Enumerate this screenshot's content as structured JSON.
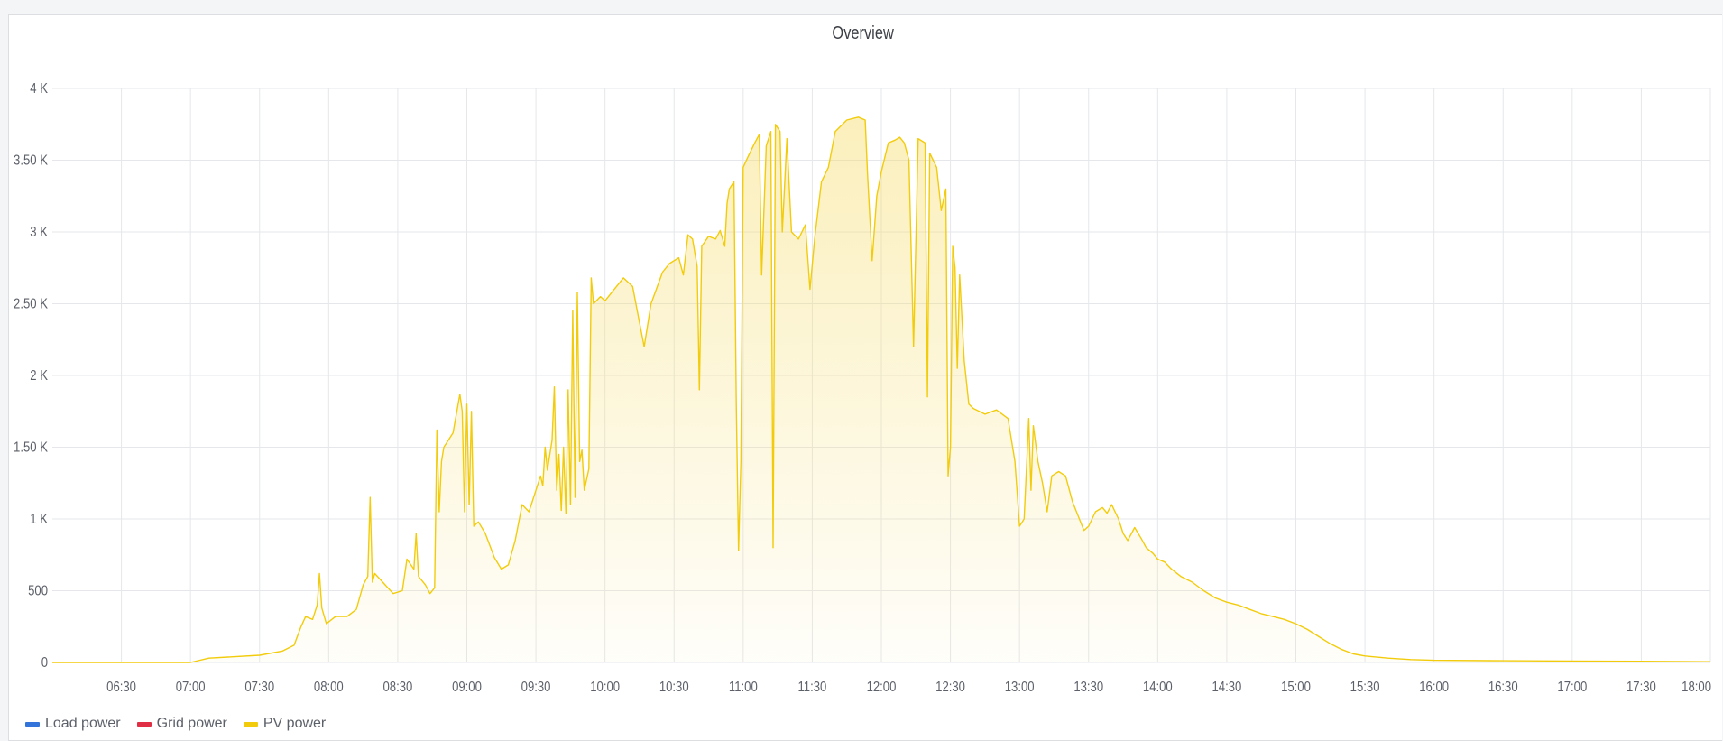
{
  "panel": {
    "title": "Overview"
  },
  "colors": {
    "pv": "#f2cc0c",
    "pv_fill_top": "#f6dc6a",
    "load": "#3274d9",
    "grid": "#e02f44",
    "grid_lines": "#e6e7ea"
  },
  "legend": [
    {
      "label": "Load power",
      "color": "#3274d9"
    },
    {
      "label": "Grid power",
      "color": "#e02f44"
    },
    {
      "label": "PV power",
      "color": "#f2cc0c"
    }
  ],
  "chart_data": {
    "type": "area",
    "title": "Overview",
    "xlabel": "",
    "ylabel": "",
    "x_range": [
      "06:00",
      "18:00"
    ],
    "y_range": [
      0,
      4000
    ],
    "x_ticks": [
      "06:30",
      "07:00",
      "07:30",
      "08:00",
      "08:30",
      "09:00",
      "09:30",
      "10:00",
      "10:30",
      "11:00",
      "11:30",
      "12:00",
      "12:30",
      "13:00",
      "13:30",
      "14:00",
      "14:30",
      "15:00",
      "15:30",
      "16:00",
      "16:30",
      "17:00",
      "17:30",
      "18:00"
    ],
    "y_ticks": [
      {
        "value": 0,
        "label": "0"
      },
      {
        "value": 500,
        "label": "500"
      },
      {
        "value": 1000,
        "label": "1 K"
      },
      {
        "value": 1500,
        "label": "1.50 K"
      },
      {
        "value": 2000,
        "label": "2 K"
      },
      {
        "value": 2500,
        "label": "2.50 K"
      },
      {
        "value": 3000,
        "label": "3 K"
      },
      {
        "value": 3500,
        "label": "3.50 K"
      },
      {
        "value": 4000,
        "label": "4 K"
      }
    ],
    "grid": true,
    "legend_position": "bottom-left",
    "series": [
      {
        "name": "Load power",
        "values": []
      },
      {
        "name": "Grid power",
        "values": []
      },
      {
        "name": "PV power",
        "points": [
          [
            "06:00",
            0
          ],
          [
            "06:30",
            0
          ],
          [
            "06:45",
            0
          ],
          [
            "07:00",
            0
          ],
          [
            "07:08",
            30
          ],
          [
            "07:30",
            50
          ],
          [
            "07:40",
            80
          ],
          [
            "07:45",
            120
          ],
          [
            "07:48",
            250
          ],
          [
            "07:50",
            320
          ],
          [
            "07:53",
            300
          ],
          [
            "07:55",
            400
          ],
          [
            "07:56",
            620
          ],
          [
            "07:57",
            380
          ],
          [
            "07:59",
            270
          ],
          [
            "08:03",
            320
          ],
          [
            "08:08",
            320
          ],
          [
            "08:12",
            370
          ],
          [
            "08:15",
            540
          ],
          [
            "08:17",
            600
          ],
          [
            "08:18",
            1150
          ],
          [
            "08:19",
            560
          ],
          [
            "08:20",
            620
          ],
          [
            "08:24",
            550
          ],
          [
            "08:28",
            480
          ],
          [
            "08:32",
            500
          ],
          [
            "08:34",
            720
          ],
          [
            "08:37",
            650
          ],
          [
            "08:38",
            900
          ],
          [
            "08:39",
            600
          ],
          [
            "08:42",
            540
          ],
          [
            "08:44",
            480
          ],
          [
            "08:46",
            520
          ],
          [
            "08:47",
            1620
          ],
          [
            "08:48",
            1050
          ],
          [
            "08:49",
            1400
          ],
          [
            "08:50",
            1500
          ],
          [
            "08:54",
            1600
          ],
          [
            "08:57",
            1870
          ],
          [
            "08:58",
            1750
          ],
          [
            "08:59",
            1050
          ],
          [
            "09:00",
            1800
          ],
          [
            "09:01",
            1100
          ],
          [
            "09:02",
            1750
          ],
          [
            "09:03",
            950
          ],
          [
            "09:05",
            980
          ],
          [
            "09:08",
            900
          ],
          [
            "09:12",
            730
          ],
          [
            "09:15",
            650
          ],
          [
            "09:18",
            680
          ],
          [
            "09:21",
            850
          ],
          [
            "09:24",
            1100
          ],
          [
            "09:27",
            1050
          ],
          [
            "09:30",
            1200
          ],
          [
            "09:32",
            1300
          ],
          [
            "09:33",
            1230
          ],
          [
            "09:34",
            1500
          ],
          [
            "09:35",
            1340
          ],
          [
            "09:37",
            1550
          ],
          [
            "09:38",
            1920
          ],
          [
            "09:39",
            1200
          ],
          [
            "09:40",
            1450
          ],
          [
            "09:41",
            1060
          ],
          [
            "09:42",
            1500
          ],
          [
            "09:43",
            1040
          ],
          [
            "09:44",
            1900
          ],
          [
            "09:45",
            1100
          ],
          [
            "09:46",
            2450
          ],
          [
            "09:47",
            1150
          ],
          [
            "09:48",
            2580
          ],
          [
            "09:49",
            1400
          ],
          [
            "09:50",
            1480
          ],
          [
            "09:51",
            1200
          ],
          [
            "09:53",
            1350
          ],
          [
            "09:54",
            2680
          ],
          [
            "09:55",
            2500
          ],
          [
            "09:58",
            2550
          ],
          [
            "10:00",
            2520
          ],
          [
            "10:05",
            2620
          ],
          [
            "10:08",
            2680
          ],
          [
            "10:12",
            2620
          ],
          [
            "10:14",
            2450
          ],
          [
            "10:17",
            2200
          ],
          [
            "10:20",
            2500
          ],
          [
            "10:25",
            2720
          ],
          [
            "10:28",
            2780
          ],
          [
            "10:32",
            2820
          ],
          [
            "10:34",
            2700
          ],
          [
            "10:36",
            2980
          ],
          [
            "10:38",
            2950
          ],
          [
            "10:40",
            2760
          ],
          [
            "10:41",
            1900
          ],
          [
            "10:42",
            2900
          ],
          [
            "10:45",
            2970
          ],
          [
            "10:48",
            2950
          ],
          [
            "10:50",
            3010
          ],
          [
            "10:52",
            2900
          ],
          [
            "10:53",
            3200
          ],
          [
            "10:54",
            3300
          ],
          [
            "10:56",
            3350
          ],
          [
            "10:57",
            1800
          ],
          [
            "10:58",
            780
          ],
          [
            "10:59",
            1400
          ],
          [
            "11:00",
            3450
          ],
          [
            "11:02",
            3520
          ],
          [
            "11:05",
            3620
          ],
          [
            "11:07",
            3680
          ],
          [
            "11:08",
            2700
          ],
          [
            "11:10",
            3600
          ],
          [
            "11:12",
            3700
          ],
          [
            "11:13",
            800
          ],
          [
            "11:14",
            3750
          ],
          [
            "11:16",
            3700
          ],
          [
            "11:17",
            3000
          ],
          [
            "11:19",
            3650
          ],
          [
            "11:21",
            3000
          ],
          [
            "11:24",
            2950
          ],
          [
            "11:27",
            3050
          ],
          [
            "11:29",
            2600
          ],
          [
            "11:31",
            2950
          ],
          [
            "11:34",
            3350
          ],
          [
            "11:37",
            3450
          ],
          [
            "11:40",
            3700
          ],
          [
            "11:45",
            3780
          ],
          [
            "11:50",
            3800
          ],
          [
            "11:53",
            3780
          ],
          [
            "11:54",
            3400
          ],
          [
            "11:56",
            2800
          ],
          [
            "11:58",
            3250
          ],
          [
            "12:00",
            3420
          ],
          [
            "12:03",
            3620
          ],
          [
            "12:06",
            3640
          ],
          [
            "12:08",
            3660
          ],
          [
            "12:10",
            3620
          ],
          [
            "12:12",
            3500
          ],
          [
            "12:14",
            2200
          ],
          [
            "12:16",
            3650
          ],
          [
            "12:19",
            3620
          ],
          [
            "12:20",
            1850
          ],
          [
            "12:21",
            3550
          ],
          [
            "12:24",
            3450
          ],
          [
            "12:26",
            3150
          ],
          [
            "12:28",
            3300
          ],
          [
            "12:29",
            1300
          ],
          [
            "12:30",
            1500
          ],
          [
            "12:31",
            2900
          ],
          [
            "12:32",
            2750
          ],
          [
            "12:33",
            2050
          ],
          [
            "12:34",
            2700
          ],
          [
            "12:36",
            2100
          ],
          [
            "12:38",
            1800
          ],
          [
            "12:40",
            1770
          ],
          [
            "12:45",
            1730
          ],
          [
            "12:50",
            1760
          ],
          [
            "12:55",
            1700
          ],
          [
            "12:58",
            1400
          ],
          [
            "13:00",
            950
          ],
          [
            "13:02",
            1000
          ],
          [
            "13:04",
            1700
          ],
          [
            "13:05",
            1200
          ],
          [
            "13:06",
            1650
          ],
          [
            "13:08",
            1400
          ],
          [
            "13:10",
            1250
          ],
          [
            "13:12",
            1050
          ],
          [
            "13:14",
            1300
          ],
          [
            "13:17",
            1330
          ],
          [
            "13:20",
            1300
          ],
          [
            "13:23",
            1120
          ],
          [
            "13:26",
            1000
          ],
          [
            "13:28",
            920
          ],
          [
            "13:30",
            950
          ],
          [
            "13:33",
            1050
          ],
          [
            "13:36",
            1080
          ],
          [
            "13:38",
            1040
          ],
          [
            "13:40",
            1100
          ],
          [
            "13:43",
            1000
          ],
          [
            "13:45",
            900
          ],
          [
            "13:47",
            850
          ],
          [
            "13:50",
            940
          ],
          [
            "13:53",
            860
          ],
          [
            "13:55",
            800
          ],
          [
            "13:58",
            760
          ],
          [
            "14:00",
            720
          ],
          [
            "14:03",
            700
          ],
          [
            "14:06",
            650
          ],
          [
            "14:10",
            600
          ],
          [
            "14:15",
            560
          ],
          [
            "14:20",
            500
          ],
          [
            "14:25",
            450
          ],
          [
            "14:30",
            420
          ],
          [
            "14:35",
            400
          ],
          [
            "14:40",
            370
          ],
          [
            "14:45",
            340
          ],
          [
            "14:50",
            320
          ],
          [
            "14:55",
            300
          ],
          [
            "15:00",
            270
          ],
          [
            "15:05",
            230
          ],
          [
            "15:10",
            180
          ],
          [
            "15:15",
            130
          ],
          [
            "15:20",
            90
          ],
          [
            "15:25",
            60
          ],
          [
            "15:30",
            45
          ],
          [
            "15:40",
            30
          ],
          [
            "15:50",
            20
          ],
          [
            "16:00",
            15
          ],
          [
            "16:30",
            12
          ],
          [
            "17:00",
            10
          ],
          [
            "17:30",
            8
          ],
          [
            "18:00",
            5
          ]
        ]
      }
    ]
  }
}
